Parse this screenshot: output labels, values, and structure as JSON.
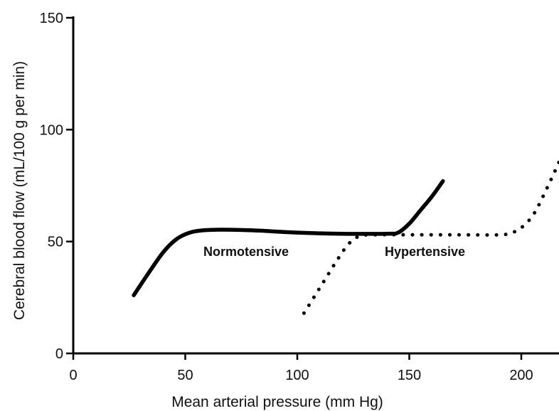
{
  "chart_data": {
    "type": "line",
    "title": "",
    "xlabel": "Mean arterial pressure (mm Hg)",
    "ylabel": "Cerebral blood flow (mL/100 g per min)",
    "xlim": [
      0,
      218
    ],
    "ylim": [
      0,
      150
    ],
    "xticks": [
      0,
      50,
      100,
      150,
      200
    ],
    "yticks": [
      0,
      50,
      100,
      150
    ],
    "grid": false,
    "legend": "none",
    "series": [
      {
        "name": "Normotensive",
        "style": "solid",
        "color": "#000000",
        "x": [
          27,
          33,
          40,
          46,
          52,
          58,
          66,
          80,
          100,
          120,
          140,
          145,
          150,
          155,
          160,
          165
        ],
        "y": [
          26,
          35,
          45,
          51,
          54,
          55,
          55.3,
          55,
          54,
          53.5,
          53.5,
          54,
          58,
          64,
          70,
          77
        ]
      },
      {
        "name": "Hypertensive",
        "style": "dotted",
        "color": "#000000",
        "x": [
          103,
          108,
          113,
          118,
          123,
          128,
          135,
          150,
          170,
          190,
          196,
          201,
          206,
          212,
          218
        ],
        "y": [
          18,
          26,
          34,
          42,
          49,
          52.5,
          53,
          53,
          53,
          53,
          54,
          57,
          63,
          75,
          88
        ]
      }
    ]
  }
}
